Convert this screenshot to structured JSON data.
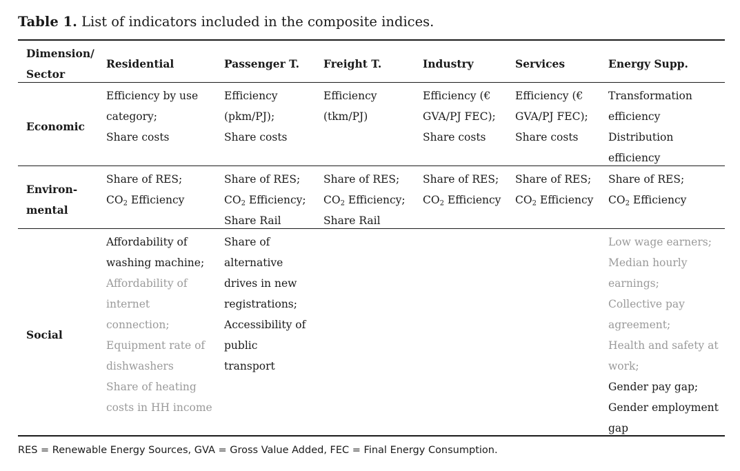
{
  "caption": {
    "label": "Table 1.",
    "text": "List of indicators included in the composite indices."
  },
  "header": {
    "dimension_line1": "Dimension/",
    "dimension_line2": "Sector",
    "residential": "Residential",
    "passenger": "Passenger T.",
    "freight": "Freight T.",
    "industry": "Industry",
    "services": "Services",
    "energy": "Energy Supp."
  },
  "economic": {
    "label": "Economic",
    "residential": [
      "Efficiency by use",
      "category;",
      "Share costs"
    ],
    "passenger": [
      "Efficiency",
      "(pkm/PJ);",
      "Share costs"
    ],
    "freight": [
      "Efficiency",
      "(tkm/PJ)"
    ],
    "industry": [
      "Efficiency (€",
      "GVA/PJ FEC);",
      "Share costs"
    ],
    "services": [
      "Efficiency (€",
      "GVA/PJ FEC);",
      "Share costs"
    ],
    "energy": [
      "Transformation",
      "efficiency",
      "Distribution",
      "efficiency"
    ]
  },
  "environmental": {
    "label_line1": "Environ-",
    "label_line2": "mental",
    "share_res": "Share of RES;",
    "co2_prefix": "CO",
    "co2_sub": "2",
    "co2_suffix": " Efficiency",
    "co2_suffix_semicolon": " Efficiency;",
    "share_rail": "Share Rail"
  },
  "social": {
    "label": "Social",
    "residential_black": [
      "Affordability of",
      "washing machine;"
    ],
    "residential_grey": [
      "Affordability of",
      "internet",
      "connection;",
      "Equipment rate of",
      "dishwashers",
      "Share of heating",
      "costs in HH income"
    ],
    "passenger": [
      "Share of",
      "alternative",
      "drives in new",
      "registrations;",
      "Accessibility of",
      "public",
      "transport"
    ],
    "energy_grey": [
      "Low wage earners;",
      "Median hourly",
      "earnings;",
      "Collective pay",
      "agreement;",
      "Health and safety at",
      "work;"
    ],
    "energy_black": [
      "Gender pay gap;",
      "Gender employment",
      "gap"
    ]
  },
  "footnote": "RES = Renewable Energy Sources, GVA = Gross Value Added, FEC = Final Energy Consumption."
}
